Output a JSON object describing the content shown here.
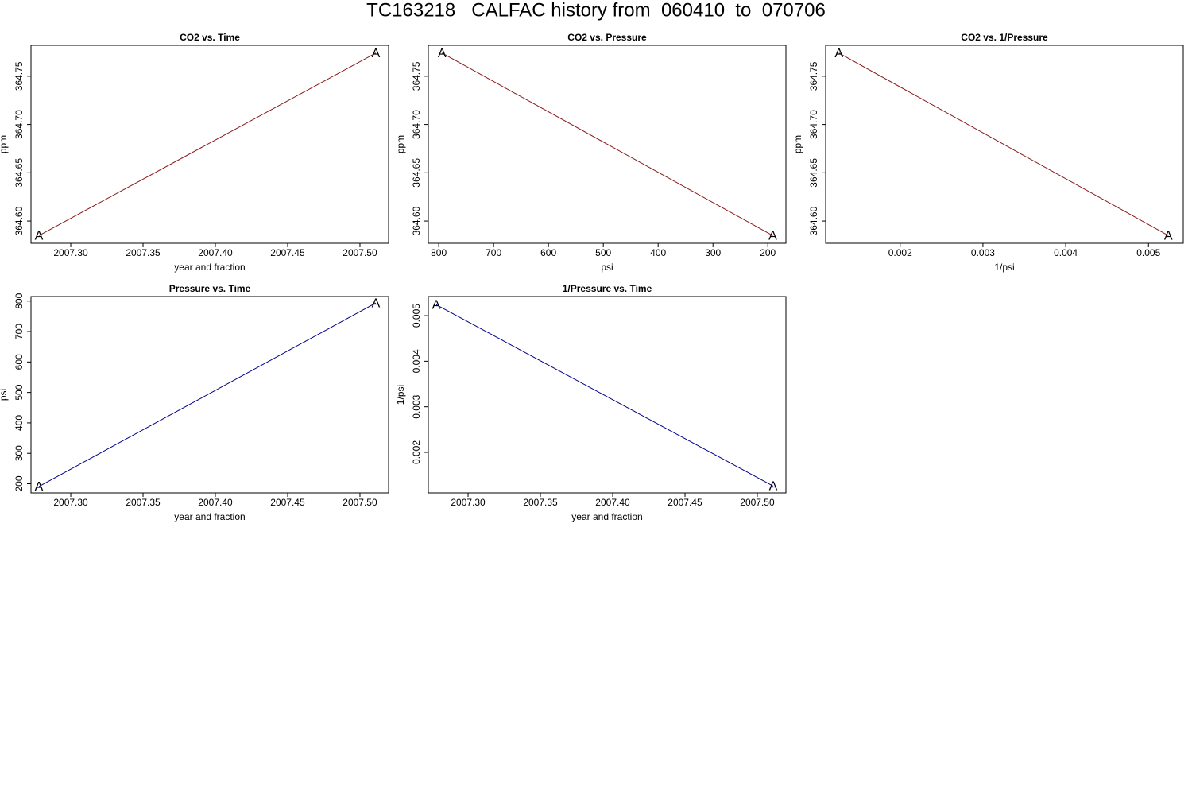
{
  "title": "TC163218   CALFAC history from  060410  to  070706",
  "chart_data": [
    {
      "type": "line",
      "title": "CO2 vs. Time",
      "xlabel": "year and fraction",
      "ylabel": "ppm",
      "x": [
        2007.278,
        2007.511
      ],
      "values": [
        364.585,
        364.774
      ],
      "color": "#8b1a1a",
      "marker": "A",
      "xlim": [
        2007.2725,
        2007.5198
      ],
      "ylim": [
        364.577,
        364.782
      ],
      "xticks": [
        {
          "value": 2007.3,
          "label": "2007.30"
        },
        2007.35,
        {
          "value": 2007.4,
          "label": "2007.40"
        },
        2007.45,
        {
          "value": 2007.5,
          "label": "2007.50"
        }
      ],
      "yticks": [
        {
          "value": 364.6,
          "label": "364.60"
        },
        364.65,
        {
          "value": 364.7,
          "label": "364.70"
        },
        364.75
      ]
    },
    {
      "type": "line",
      "title": "CO2 vs. Pressure",
      "xlabel": "psi",
      "ylabel": "ppm",
      "x": [
        794,
        191
      ],
      "values": [
        364.774,
        364.585
      ],
      "color": "#8b1a1a",
      "marker": "A",
      "xlim": [
        819,
        167
      ],
      "ylim": [
        364.577,
        364.782
      ],
      "xticks": [
        800,
        700,
        600,
        500,
        400,
        300,
        200
      ],
      "yticks": [
        {
          "value": 364.6,
          "label": "364.60"
        },
        364.65,
        {
          "value": 364.7,
          "label": "364.70"
        },
        364.75
      ]
    },
    {
      "type": "line",
      "title": "CO2 vs. 1/Pressure",
      "xlabel": "1/psi",
      "ylabel": "ppm",
      "x": [
        0.00126,
        0.00524
      ],
      "values": [
        364.774,
        364.585
      ],
      "color": "#8b1a1a",
      "marker": "A",
      "xlim": [
        0.0011,
        0.00542
      ],
      "ylim": [
        364.577,
        364.782
      ],
      "xticks": [
        0.002,
        0.003,
        0.004,
        0.005
      ],
      "yticks": [
        {
          "value": 364.6,
          "label": "364.60"
        },
        364.65,
        {
          "value": 364.7,
          "label": "364.70"
        },
        364.75
      ]
    },
    {
      "type": "line",
      "title": "Pressure vs. Time",
      "xlabel": "year and fraction",
      "ylabel": "psi",
      "x": [
        2007.278,
        2007.511
      ],
      "values": [
        191,
        794
      ],
      "color": "#00008b",
      "marker": "A",
      "xlim": [
        2007.2725,
        2007.5198
      ],
      "ylim": [
        170,
        815
      ],
      "xticks": [
        {
          "value": 2007.3,
          "label": "2007.30"
        },
        2007.35,
        {
          "value": 2007.4,
          "label": "2007.40"
        },
        2007.45,
        {
          "value": 2007.5,
          "label": "2007.50"
        }
      ],
      "yticks": [
        200,
        300,
        400,
        500,
        600,
        700,
        800
      ]
    },
    {
      "type": "line",
      "title": "1/Pressure vs. Time",
      "xlabel": "year and fraction",
      "ylabel": "1/psi",
      "x": [
        2007.278,
        2007.511
      ],
      "values": [
        0.00524,
        0.00126
      ],
      "color": "#00008b",
      "marker": "A",
      "xlim": [
        2007.2725,
        2007.5198
      ],
      "ylim": [
        0.00111,
        0.00542
      ],
      "xticks": [
        {
          "value": 2007.3,
          "label": "2007.30"
        },
        2007.35,
        {
          "value": 2007.4,
          "label": "2007.40"
        },
        2007.45,
        {
          "value": 2007.5,
          "label": "2007.50"
        }
      ],
      "yticks": [
        0.002,
        0.003,
        0.004,
        0.005
      ]
    }
  ]
}
